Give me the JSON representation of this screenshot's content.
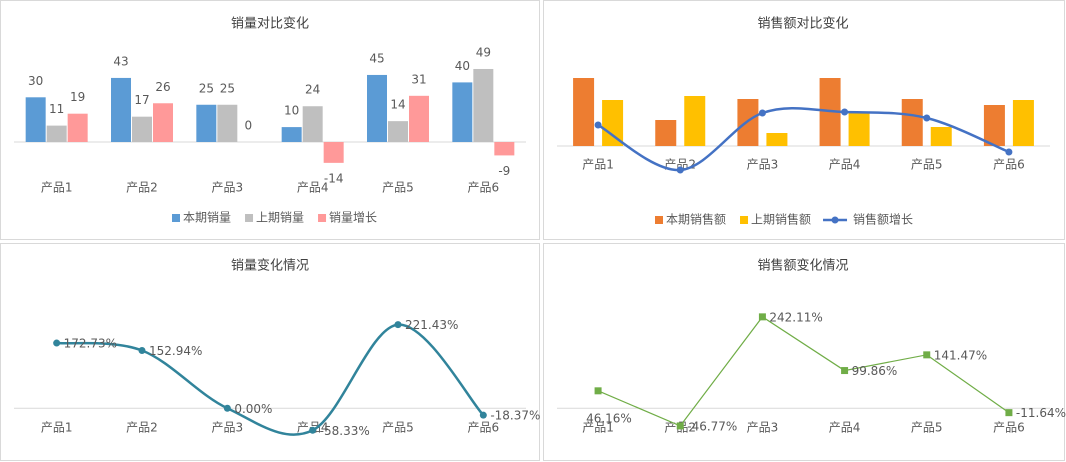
{
  "chart_data": [
    {
      "type": "bar",
      "title": "销量对比变化",
      "categories": [
        "产品1",
        "产品2",
        "产品3",
        "产品4",
        "产品5",
        "产品6"
      ],
      "series": [
        {
          "name": "本期销量",
          "color": "#5b9bd5",
          "values": [
            30,
            43,
            25,
            10,
            45,
            40
          ]
        },
        {
          "name": "上期销量",
          "color": "#bfbfbf",
          "values": [
            11,
            17,
            25,
            24,
            14,
            49
          ]
        },
        {
          "name": "销量增长",
          "color": "#ff9999",
          "values": [
            19,
            26,
            0,
            -14,
            31,
            -9
          ]
        }
      ],
      "ylim": [
        -20,
        60
      ],
      "data_labels": true,
      "legend": "bottom"
    },
    {
      "type": "bar",
      "title": "销售额对比变化",
      "categories": [
        "产品1",
        "产品2",
        "产品3",
        "产品4",
        "产品5",
        "产品6"
      ],
      "series": [
        {
          "name": "本期销售额",
          "color": "#ed7d31",
          "values": [
            68,
            26,
            47,
            68,
            47,
            41
          ]
        },
        {
          "name": "上期销售额",
          "color": "#ffc000",
          "values": [
            46,
            50,
            13,
            33,
            19,
            46
          ]
        },
        {
          "name": "销售额增长",
          "color": "#4472c4",
          "type": "line",
          "smooth": true,
          "values": [
            21,
            -24,
            33,
            34,
            28,
            -6
          ]
        }
      ],
      "ylim": [
        -30,
        90
      ],
      "data_labels": false,
      "legend": "bottom"
    },
    {
      "type": "line",
      "title": "销量变化情况",
      "categories": [
        "产品1",
        "产品2",
        "产品3",
        "产品4",
        "产品5",
        "产品6"
      ],
      "values": [
        172.73,
        152.94,
        0,
        -58.33,
        221.43,
        -18.37
      ],
      "value_labels": [
        "172.73%",
        "152.94%",
        "0.00%",
        "-58.33%",
        "221.43%",
        "-18.37%"
      ],
      "color": "#31849b",
      "smooth": true,
      "marker": "circle",
      "ylim": [
        -100,
        300
      ]
    },
    {
      "type": "line",
      "title": "销售额变化情况",
      "categories": [
        "产品1",
        "产品2",
        "产品3",
        "产品4",
        "产品5",
        "产品6"
      ],
      "values": [
        46.16,
        -46.77,
        242.11,
        99.86,
        141.47,
        -11.64
      ],
      "value_labels": [
        "46.16%",
        "-46.77%",
        "242.11%",
        "99.86%",
        "141.47%",
        "-11.64%"
      ],
      "color": "#70ad47",
      "smooth": false,
      "marker": "square",
      "ylim": [
        -100,
        300
      ]
    }
  ]
}
